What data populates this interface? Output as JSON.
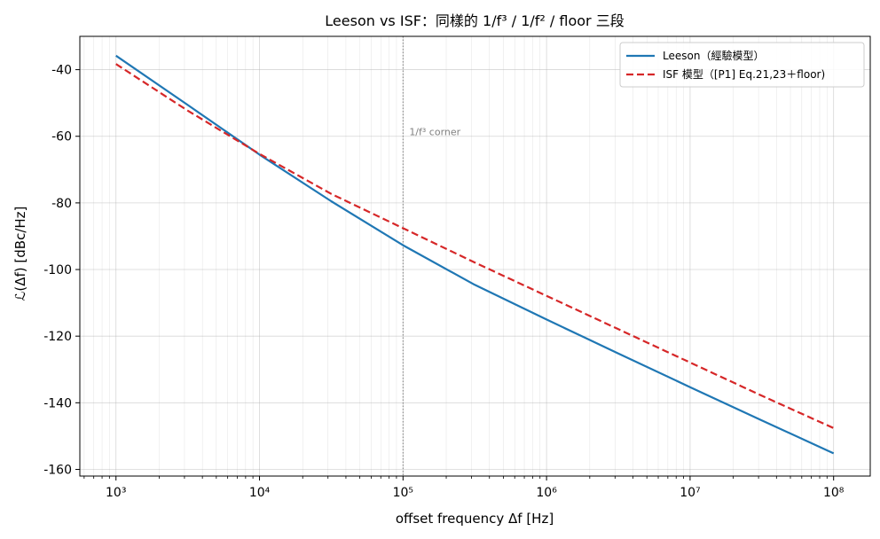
{
  "chart_data": {
    "type": "line",
    "title": "Leeson vs ISF：同樣的 1/f³ / 1/f² / floor 三段",
    "xlabel": "offset frequency Δf [Hz]",
    "ylabel": "ℒ(Δf) [dBc/Hz]",
    "xscale": "log",
    "xlim": [
      560,
      180000000
    ],
    "ylim": [
      -162,
      -30
    ],
    "x_ticks": [
      {
        "value": 1000,
        "label": "10³"
      },
      {
        "value": 10000,
        "label": "10⁴"
      },
      {
        "value": 100000,
        "label": "10⁵"
      },
      {
        "value": 1000000,
        "label": "10⁶"
      },
      {
        "value": 10000000,
        "label": "10⁷"
      },
      {
        "value": 100000000,
        "label": "10⁸"
      }
    ],
    "y_ticks": [
      {
        "value": -40,
        "label": "-40"
      },
      {
        "value": -60,
        "label": "-60"
      },
      {
        "value": -80,
        "label": "-80"
      },
      {
        "value": -100,
        "label": "-100"
      },
      {
        "value": -120,
        "label": "-120"
      },
      {
        "value": -140,
        "label": "-140"
      },
      {
        "value": -160,
        "label": "-160"
      }
    ],
    "grid": true,
    "legend_position": "top-right",
    "series": [
      {
        "name": "Leeson（經驗模型）",
        "color": "#1f77b4",
        "style": "solid",
        "x": [
          1000,
          3162,
          10000,
          31623,
          100000,
          316228,
          1000000,
          3162278,
          10000000,
          31622777,
          100000000
        ],
        "y": [
          -35.8,
          -50.6,
          -65.5,
          -79.5,
          -92.7,
          -104.6,
          -115.0,
          -125.2,
          -135.3,
          -145.3,
          -155.2
        ]
      },
      {
        "name": "ISF 模型（[P1] Eq.21,23＋floor)",
        "color": "#d62728",
        "style": "dashed",
        "x": [
          1000,
          3162,
          10000,
          31623,
          100000,
          316228,
          1000000,
          3162278,
          10000000,
          31622777,
          100000000
        ],
        "y": [
          -38.3,
          -52.3,
          -65.3,
          -77.3,
          -87.6,
          -97.9,
          -107.9,
          -117.9,
          -127.9,
          -137.9,
          -147.6
        ]
      }
    ],
    "vlines": [
      {
        "x": 100000,
        "label": "1/f³ corner",
        "color": "#808080",
        "style": "dotted"
      }
    ],
    "annotations": [
      {
        "text": "1/f³ corner",
        "x": 100000,
        "y": -60
      }
    ]
  }
}
